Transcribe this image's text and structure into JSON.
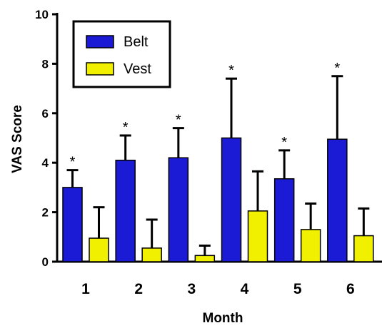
{
  "chart_data": {
    "type": "bar",
    "xlabel": "Month",
    "ylabel": "VAS Score",
    "ylim": [
      0,
      10
    ],
    "yticks": [
      "0",
      "2",
      "4",
      "6",
      "8",
      "10"
    ],
    "categories": [
      "1",
      "2",
      "3",
      "4",
      "5",
      "6"
    ],
    "series": [
      {
        "name": "Belt",
        "color": "#1b1bd6",
        "values": [
          3.0,
          4.1,
          4.2,
          5.0,
          3.35,
          4.95
        ],
        "error": [
          0.7,
          1.0,
          1.2,
          2.4,
          1.15,
          2.55
        ],
        "significance": [
          "*",
          "*",
          "*",
          "*",
          "*",
          "*"
        ]
      },
      {
        "name": "Vest",
        "color": "#f0f000",
        "values": [
          0.95,
          0.55,
          0.25,
          2.05,
          1.3,
          1.05
        ],
        "error": [
          1.25,
          1.15,
          0.4,
          1.6,
          1.05,
          1.1
        ]
      }
    ],
    "legend_position": "top-left",
    "grid": false
  }
}
